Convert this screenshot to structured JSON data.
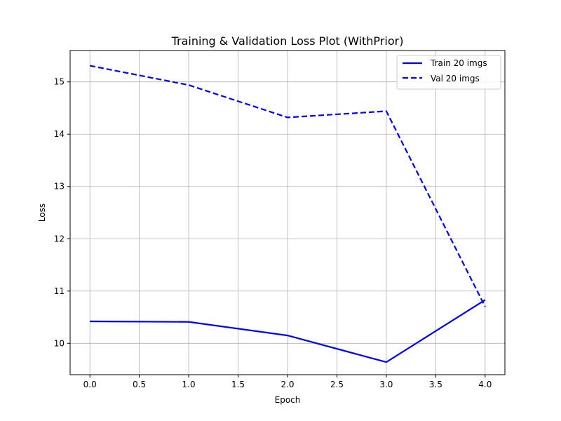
{
  "chart_data": {
    "type": "line",
    "title": "Training & Validation Loss Plot (WithPrior)",
    "xlabel": "Epoch",
    "ylabel": "Loss",
    "xlim": [
      -0.2,
      4.2
    ],
    "ylim": [
      9.4,
      15.6
    ],
    "xticks": [
      "0.0",
      "0.5",
      "1.0",
      "1.5",
      "2.0",
      "2.5",
      "3.0",
      "3.5",
      "4.0"
    ],
    "xtick_values": [
      0,
      0.5,
      1,
      1.5,
      2,
      2.5,
      3,
      3.5,
      4
    ],
    "yticks": [
      "10",
      "11",
      "12",
      "13",
      "14",
      "15"
    ],
    "ytick_values": [
      10,
      11,
      12,
      13,
      14,
      15
    ],
    "grid": true,
    "legend_position": "top-right",
    "x": [
      0,
      1,
      2,
      3,
      4
    ],
    "series": [
      {
        "name": "Train 20 imgs",
        "values": [
          10.42,
          10.41,
          10.15,
          9.64,
          10.83
        ],
        "color": "#0000ff",
        "style": "solid"
      },
      {
        "name": "Val 20 imgs",
        "values": [
          15.31,
          14.94,
          14.32,
          14.44,
          10.7
        ],
        "color": "#0000ff",
        "style": "dashed"
      }
    ]
  }
}
